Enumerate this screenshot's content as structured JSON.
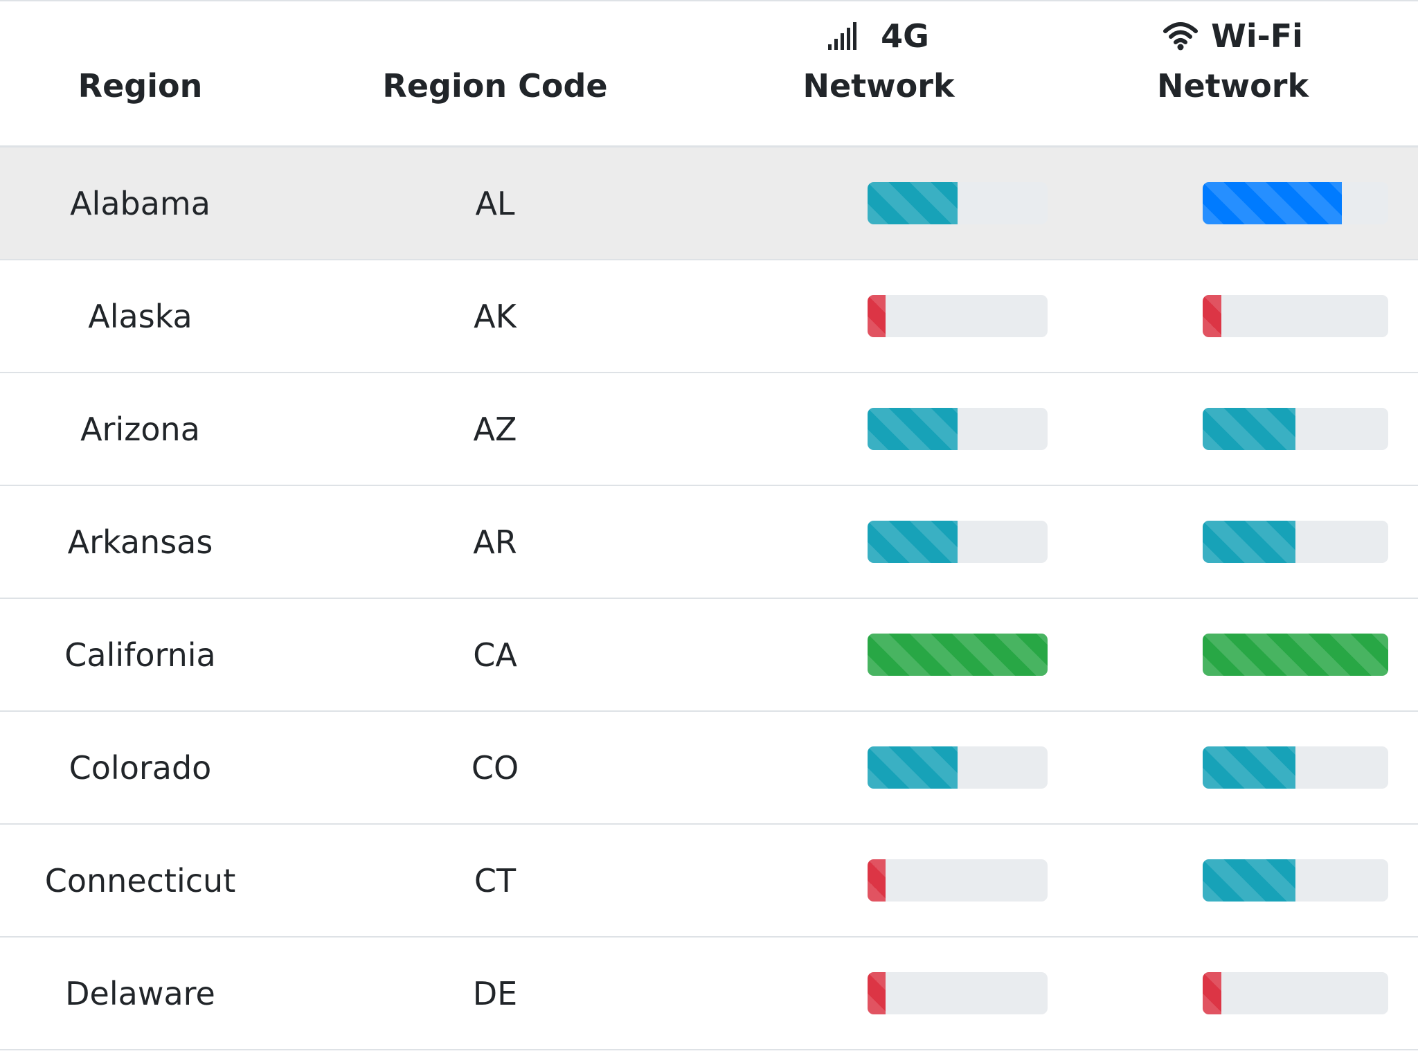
{
  "table": {
    "headers": {
      "region": "Region",
      "region_code": "Region Code",
      "network_4g_line1": "4G",
      "network_4g_line2": "Network",
      "network_wifi_line1": "Wi-Fi",
      "network_wifi_line2": "Network"
    },
    "rows": [
      {
        "region": "Alabama",
        "code": "AL",
        "g4": {
          "value": 50,
          "color": "#17a2b8"
        },
        "wifi": {
          "value": 75,
          "color": "#007bff"
        },
        "active": true
      },
      {
        "region": "Alaska",
        "code": "AK",
        "g4": {
          "value": 10,
          "color": "#dc3545"
        },
        "wifi": {
          "value": 10,
          "color": "#dc3545"
        }
      },
      {
        "region": "Arizona",
        "code": "AZ",
        "g4": {
          "value": 50,
          "color": "#17a2b8"
        },
        "wifi": {
          "value": 50,
          "color": "#17a2b8"
        }
      },
      {
        "region": "Arkansas",
        "code": "AR",
        "g4": {
          "value": 50,
          "color": "#17a2b8"
        },
        "wifi": {
          "value": 50,
          "color": "#17a2b8"
        }
      },
      {
        "region": "California",
        "code": "CA",
        "g4": {
          "value": 100,
          "color": "#28a745"
        },
        "wifi": {
          "value": 100,
          "color": "#28a745"
        }
      },
      {
        "region": "Colorado",
        "code": "CO",
        "g4": {
          "value": 50,
          "color": "#17a2b8"
        },
        "wifi": {
          "value": 50,
          "color": "#17a2b8"
        }
      },
      {
        "region": "Connecticut",
        "code": "CT",
        "g4": {
          "value": 10,
          "color": "#dc3545"
        },
        "wifi": {
          "value": 50,
          "color": "#17a2b8"
        }
      },
      {
        "region": "Delaware",
        "code": "DE",
        "g4": {
          "value": 10,
          "color": "#dc3545"
        },
        "wifi": {
          "value": 10,
          "color": "#dc3545"
        }
      }
    ]
  },
  "icons": {
    "signal": "signal-bars-icon",
    "wifi": "wifi-icon"
  }
}
